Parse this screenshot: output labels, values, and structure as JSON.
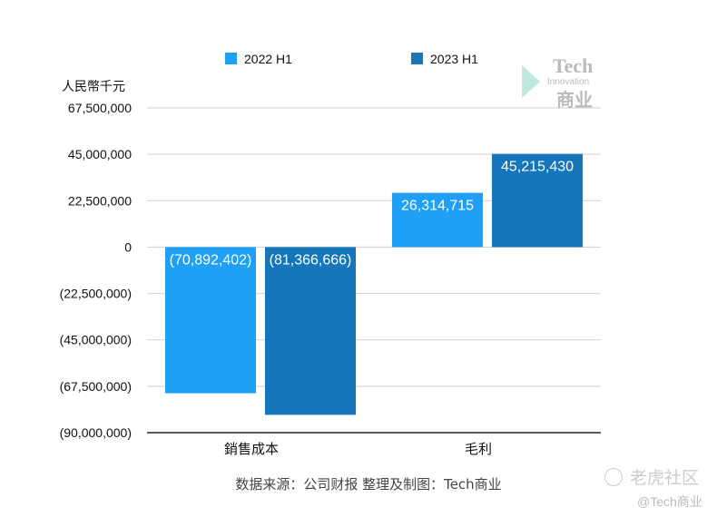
{
  "chart_data": {
    "type": "bar",
    "ylabel": "人民幣千元",
    "categories": [
      "銷售成本",
      "毛利"
    ],
    "series": [
      {
        "name": "2022 H1",
        "color": "#1fa0f5",
        "values": [
          -70892402,
          26314715
        ],
        "labels": [
          "(70,892,402)",
          "26,314,715"
        ]
      },
      {
        "name": "2023 H1",
        "color": "#1576ba",
        "values": [
          -81366666,
          45215430
        ],
        "labels": [
          "(81,366,666)",
          "45,215,430"
        ]
      }
    ],
    "ylim": [
      -90000000,
      67500000
    ],
    "yticks": [
      67500000,
      45000000,
      22500000,
      0,
      -22500000,
      -45000000,
      -67500000,
      -90000000
    ],
    "ytick_labels": [
      "67,500,000",
      "45,000,000",
      "22,500,000",
      "0",
      "(22,500,000)",
      "(45,000,000)",
      "(67,500,000)",
      "(90,000,000)"
    ],
    "grid": true,
    "legend": "top",
    "source": "数据来源：公司财报 整理及制图：Tech商业"
  },
  "watermark": {
    "logo_top": "Tech",
    "logo_mid": "Innovation",
    "logo_bottom": "商业",
    "site": "老虎社区",
    "handle": "@Tech商业"
  }
}
